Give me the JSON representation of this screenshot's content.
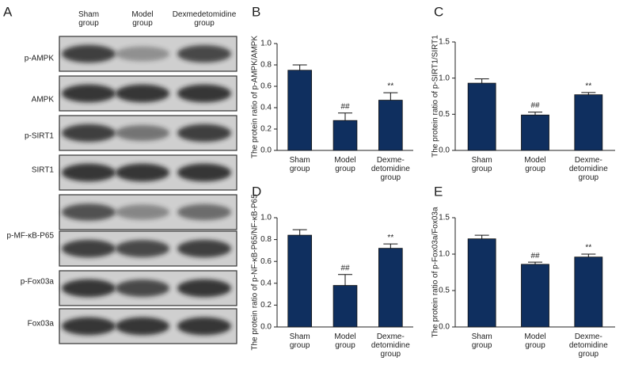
{
  "blot": {
    "panel": "A",
    "columns": [
      [
        "Sham",
        "group"
      ],
      [
        "Model",
        "group"
      ],
      [
        "Dexmedetomidine",
        "group"
      ]
    ],
    "rows": [
      "p-AMPK",
      "AMPK",
      "p-SIRT1",
      "SIRT1",
      "p-MF-κB-P65",
      "p-Fox03a",
      "Fox03a"
    ]
  },
  "chart_data": [
    {
      "type": "bar",
      "panel": "B",
      "y_label": "The protein ratio of p-AMPK/AMPK",
      "categories": [
        [
          "Sham",
          "group"
        ],
        [
          "Model",
          "group"
        ],
        [
          "Dexme-",
          "detomidine",
          "group"
        ]
      ],
      "values": [
        0.75,
        0.28,
        0.47
      ],
      "errors": [
        0.05,
        0.07,
        0.07
      ],
      "annotations": [
        null,
        "##",
        "**"
      ],
      "color": "#0f2f5f",
      "ylim": [
        0,
        1.0
      ],
      "yticks": [
        {
          "value": 0,
          "label": "0.0"
        },
        0.2,
        0.4,
        0.6,
        0.8,
        {
          "value": 1,
          "label": "1.0"
        }
      ]
    },
    {
      "type": "bar",
      "panel": "C",
      "y_label": "The protein ratio of p-SIRT1/SIRT1",
      "categories": [
        [
          "Sham",
          "group"
        ],
        [
          "Model",
          "group"
        ],
        [
          "Dexme-",
          "detomidine",
          "group"
        ]
      ],
      "values": [
        0.93,
        0.49,
        0.77
      ],
      "errors": [
        0.06,
        0.04,
        0.03
      ],
      "annotations": [
        null,
        "##",
        "**"
      ],
      "color": "#0f2f5f",
      "ylim": [
        0,
        1.5
      ],
      "yticks": [
        {
          "value": 0,
          "label": "0.0"
        },
        0.5,
        {
          "value": 1,
          "label": "1.0"
        },
        1.5
      ]
    },
    {
      "type": "bar",
      "panel": "D",
      "y_label": "The protein ratio of p-NF-κB-P65/NF-κB-P65",
      "categories": [
        [
          "Sham",
          "group"
        ],
        [
          "Model",
          "group"
        ],
        [
          "Dexme-",
          "detomidine",
          "group"
        ]
      ],
      "values": [
        0.84,
        0.38,
        0.72
      ],
      "errors": [
        0.05,
        0.1,
        0.04
      ],
      "annotations": [
        null,
        "##",
        "**"
      ],
      "color": "#0f2f5f",
      "ylim": [
        0,
        1.0
      ],
      "yticks": [
        {
          "value": 0,
          "label": "0.0"
        },
        0.2,
        0.4,
        0.6,
        0.8,
        {
          "value": 1,
          "label": "1.0"
        }
      ]
    },
    {
      "type": "bar",
      "panel": "E",
      "y_label": "The protein ratio of p-Fox03a/Fox03a",
      "categories": [
        [
          "Sham",
          "group"
        ],
        [
          "Model",
          "group"
        ],
        [
          "Dexme-",
          "detomidine",
          "group"
        ]
      ],
      "values": [
        1.21,
        0.86,
        0.96
      ],
      "errors": [
        0.05,
        0.03,
        0.04
      ],
      "annotations": [
        null,
        "##",
        "**"
      ],
      "color": "#0f2f5f",
      "ylim": [
        0,
        1.5
      ],
      "yticks": [
        {
          "value": 0,
          "label": "0.0"
        },
        0.5,
        {
          "value": 1,
          "label": "1.0"
        },
        1.5
      ]
    }
  ]
}
